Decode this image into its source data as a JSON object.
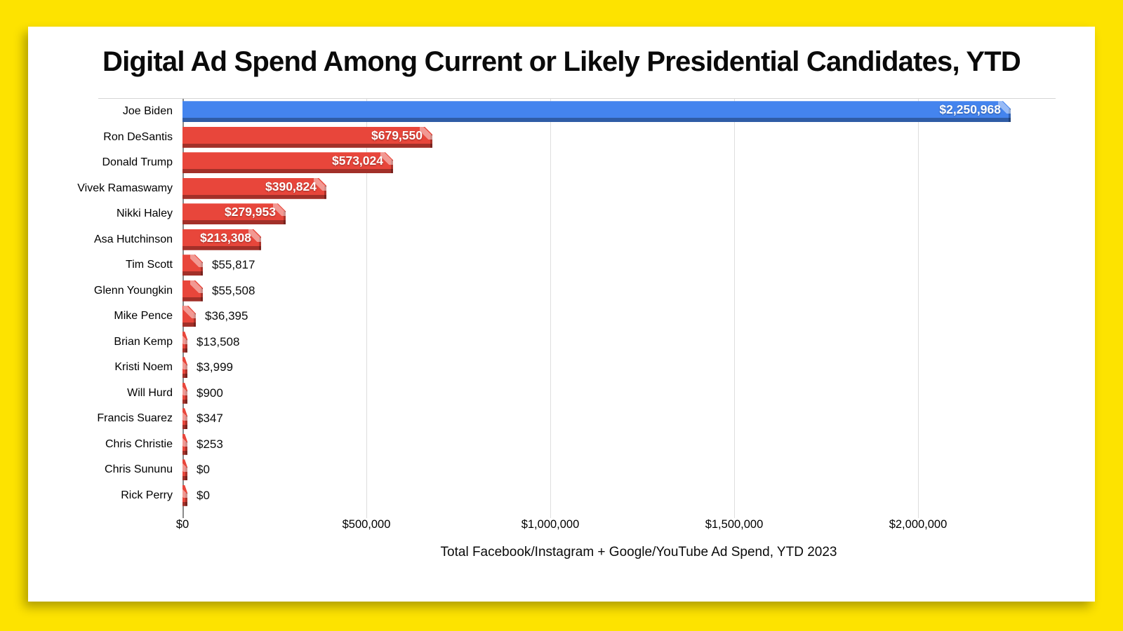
{
  "page": {
    "background_color": "#FDE300",
    "card_color": "#FFFFFF"
  },
  "chart_data": {
    "type": "bar",
    "orientation": "horizontal",
    "title": "Digital Ad Spend Among Current or Likely Presidential Candidates, YTD",
    "xlabel": "Total Facebook/Instagram + Google/YouTube Ad Spend, YTD 2023",
    "categories": [
      "Joe Biden",
      "Ron DeSantis",
      "Donald Trump",
      "Vivek Ramaswamy",
      "Nikki Haley",
      "Asa Hutchinson",
      "Tim Scott",
      "Glenn Youngkin",
      "Mike Pence",
      "Brian Kemp",
      "Kristi Noem",
      "Will Hurd",
      "Francis Suarez",
      "Chris Christie",
      "Chris Sununu",
      "Rick Perry"
    ],
    "values": [
      2250968,
      679550,
      573024,
      390824,
      279953,
      213308,
      55817,
      55508,
      36395,
      13508,
      3999,
      900,
      347,
      253,
      0,
      0
    ],
    "value_labels": [
      "$2,250,968",
      "$679,550",
      "$573,024",
      "$390,824",
      "$279,953",
      "$213,308",
      "$55,817",
      "$55,508",
      "$36,395",
      "$13,508",
      "$3,999",
      "$900",
      "$347",
      "$253",
      "$0",
      "$0"
    ],
    "inside_label_min_value": 100000,
    "x_ticks": [
      {
        "label": "$0",
        "value": 0
      },
      {
        "label": "$500,000",
        "value": 500000
      },
      {
        "label": "$1,000,000",
        "value": 1000000
      },
      {
        "label": "$1,500,000",
        "value": 1500000
      },
      {
        "label": "$2,000,000",
        "value": 2000000
      }
    ],
    "xlim": [
      0,
      2271000
    ],
    "grid": "vertical-only",
    "legend": "none",
    "bar_color_default": "#E8463B",
    "bar_color_highlight": "#4484EE",
    "highlight_index": 0
  }
}
